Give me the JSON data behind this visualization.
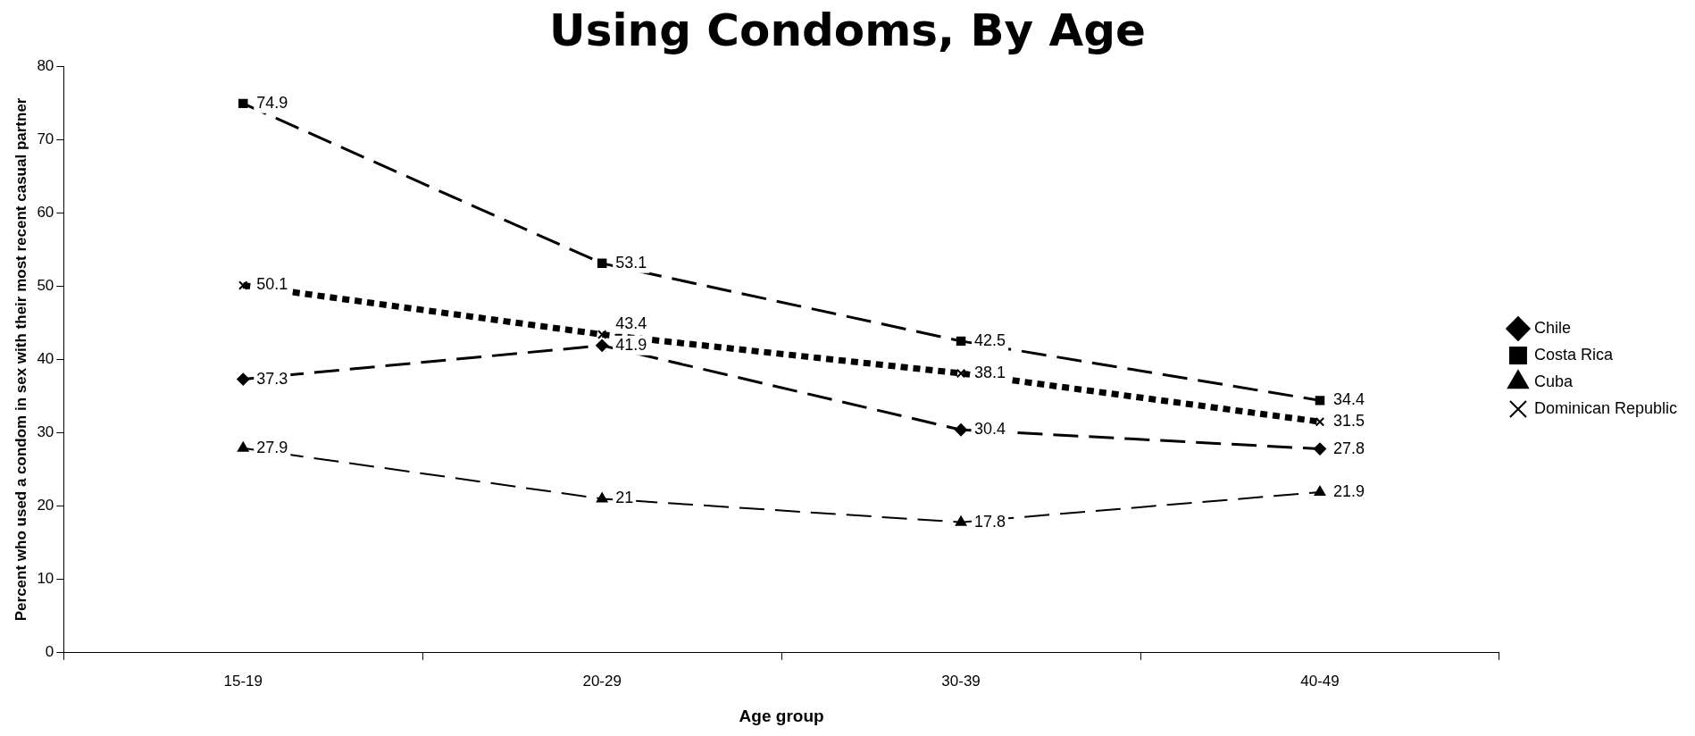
{
  "chart_data": {
    "type": "line",
    "title": "Using Condoms, By Age",
    "xlabel": "Age group",
    "ylabel": "Percent who used a condom in sex with their most recent casual partner",
    "categories": [
      "15-19",
      "20-29",
      "30-39",
      "40-49"
    ],
    "series": [
      {
        "name": "Chile",
        "color": "#000000",
        "values": [
          37.3,
          41.9,
          30.4,
          27.8
        ],
        "marker": "diamond",
        "line_style": "dashed"
      },
      {
        "name": "Costa Rica",
        "color": "#000000",
        "values": [
          74.9,
          53.1,
          42.5,
          34.4
        ],
        "marker": "square",
        "line_style": "dashed"
      },
      {
        "name": "Cuba",
        "color": "#000000",
        "values": [
          27.9,
          21,
          17.8,
          21.9
        ],
        "marker": "triangle",
        "line_style": "dashed"
      },
      {
        "name": "Dominican Republic",
        "color": "#000000",
        "values": [
          50.1,
          43.4,
          38.1,
          31.5
        ],
        "marker": "cross",
        "line_style": "dotted"
      }
    ],
    "ylim": [
      0,
      80
    ],
    "yticks": [
      0,
      10,
      20,
      30,
      40,
      50,
      60,
      70,
      80
    ],
    "grid": false,
    "legend": "right",
    "data_labels": true
  }
}
